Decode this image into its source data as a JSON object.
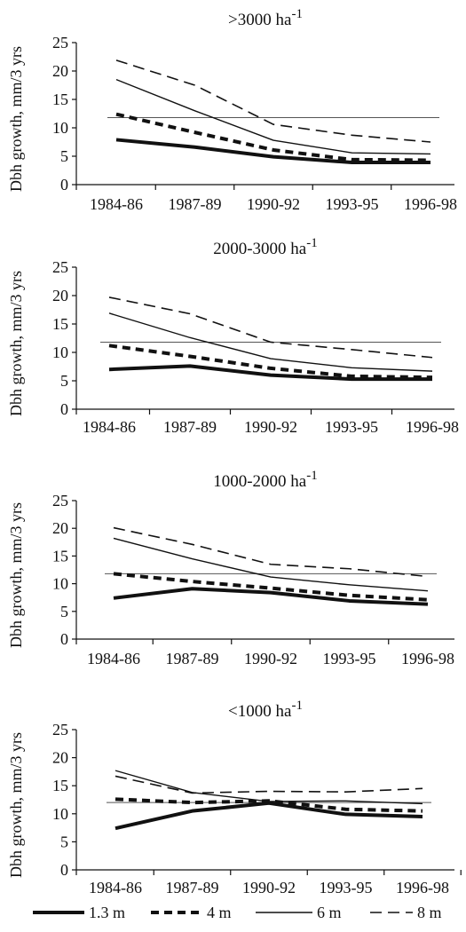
{
  "chart_data": [
    {
      "type": "line",
      "title": ">3000 ha",
      "title_sup": "-1",
      "ylabel": "Dbh growth, mm/3 yrs",
      "ylim": [
        0,
        25
      ],
      "yticks": [
        0,
        5,
        10,
        15,
        20,
        25
      ],
      "categories": [
        "1984-86",
        "1987-89",
        "1990-92",
        "1993-95",
        "1996-98"
      ],
      "reference_line": 11.8,
      "series": [
        {
          "name": "1.3 m",
          "style": "thick",
          "values": [
            7.9,
            6.6,
            4.9,
            3.9,
            3.9
          ]
        },
        {
          "name": "4 m",
          "style": "thickdash",
          "values": [
            12.4,
            9.2,
            6.1,
            4.4,
            4.3
          ]
        },
        {
          "name": "6 m",
          "style": "thin",
          "values": [
            18.5,
            13.0,
            7.8,
            5.6,
            5.4
          ]
        },
        {
          "name": "8 m",
          "style": "dash",
          "values": [
            21.9,
            17.5,
            10.6,
            8.7,
            7.5
          ]
        }
      ]
    },
    {
      "type": "line",
      "title": "2000-3000 ha",
      "title_sup": "-1",
      "ylabel": "Dbh growth, mm/3 yrs",
      "ylim": [
        0,
        25
      ],
      "yticks": [
        0,
        5,
        10,
        15,
        20,
        25
      ],
      "categories": [
        "1984-86",
        "1987-89",
        "1990-92",
        "1993-95",
        "1996-98"
      ],
      "reference_line": 11.8,
      "series": [
        {
          "name": "1.3 m",
          "style": "thick",
          "values": [
            7.0,
            7.6,
            6.0,
            5.3,
            5.3
          ]
        },
        {
          "name": "4 m",
          "style": "thickdash",
          "values": [
            11.2,
            9.3,
            7.2,
            5.8,
            5.6
          ]
        },
        {
          "name": "6 m",
          "style": "thin",
          "values": [
            16.9,
            12.6,
            8.9,
            7.3,
            6.7
          ]
        },
        {
          "name": "8 m",
          "style": "dash",
          "values": [
            19.7,
            16.8,
            11.8,
            10.5,
            9.1
          ]
        }
      ]
    },
    {
      "type": "line",
      "title": "1000-2000 ha",
      "title_sup": "-1",
      "ylabel": "Dbh growth, mm/3 yrs",
      "ylim": [
        0,
        25
      ],
      "yticks": [
        0,
        5,
        10,
        15,
        20,
        25
      ],
      "categories": [
        "1984-86",
        "1987-89",
        "1990-92",
        "1993-95",
        "1996-98"
      ],
      "reference_line": 11.8,
      "series": [
        {
          "name": "1.3 m",
          "style": "thick",
          "values": [
            7.4,
            9.1,
            8.4,
            6.9,
            6.3
          ]
        },
        {
          "name": "4 m",
          "style": "thickdash",
          "values": [
            11.8,
            10.4,
            9.2,
            7.9,
            7.1
          ]
        },
        {
          "name": "6 m",
          "style": "thin",
          "values": [
            18.2,
            14.5,
            11.2,
            9.8,
            8.7
          ]
        },
        {
          "name": "8 m",
          "style": "dash",
          "values": [
            20.1,
            17.1,
            13.5,
            12.7,
            11.3
          ]
        }
      ]
    },
    {
      "type": "line",
      "title": "<1000 ha",
      "title_sup": "-1",
      "ylabel": "Dbh growth, mm/3 yrs",
      "ylim": [
        0,
        25
      ],
      "yticks": [
        0,
        5,
        10,
        15,
        20,
        25
      ],
      "categories": [
        "1984-86",
        "1987-89",
        "1990-92",
        "1993-95",
        "1996-98"
      ],
      "reference_line": 12.0,
      "series": [
        {
          "name": "1.3 m",
          "style": "thick",
          "values": [
            7.4,
            10.5,
            11.9,
            9.9,
            9.5
          ]
        },
        {
          "name": "4 m",
          "style": "thickdash",
          "values": [
            12.6,
            12.0,
            12.3,
            10.8,
            10.5
          ]
        },
        {
          "name": "6 m",
          "style": "thin",
          "values": [
            17.7,
            13.8,
            12.2,
            12.3,
            11.8
          ]
        },
        {
          "name": "8 m",
          "style": "dash",
          "values": [
            16.7,
            13.7,
            14.0,
            13.9,
            14.5
          ]
        }
      ]
    }
  ],
  "legend": [
    {
      "label": "1.3 m",
      "style": "thick"
    },
    {
      "label": "4 m",
      "style": "thickdash"
    },
    {
      "label": "6 m",
      "style": "thin"
    },
    {
      "label": "8 m",
      "style": "dash"
    }
  ]
}
